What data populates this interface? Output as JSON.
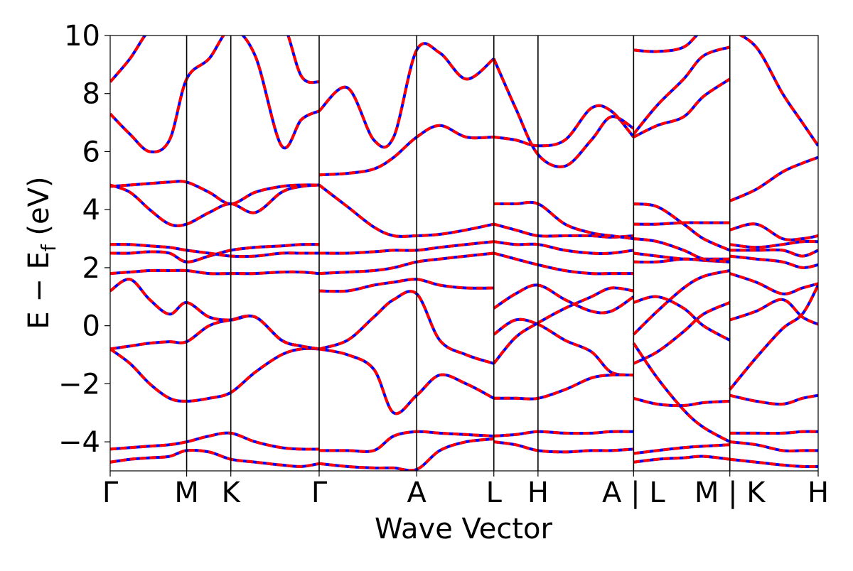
{
  "chart_data": {
    "type": "line",
    "xlabel": "Wave Vector",
    "ylabel_main": "E − E",
    "ylabel_sub": "f",
    "ylabel_unit": "(eV)",
    "ylim": [
      -5,
      10
    ],
    "yticks": [
      -4,
      -2,
      0,
      2,
      4,
      6,
      8,
      10
    ],
    "ytick_labels": [
      "−4",
      "−2",
      "0",
      "2",
      "4",
      "6",
      "8",
      "10"
    ],
    "xlim": [
      0,
      10.74
    ],
    "kpoints": [
      {
        "label": "Γ",
        "x": 0.0
      },
      {
        "label": "M",
        "x": 1.16
      },
      {
        "label": "K",
        "x": 1.83
      },
      {
        "label": "Γ",
        "x": 3.17
      },
      {
        "label": "A",
        "x": 4.65
      },
      {
        "label": "L",
        "x": 5.82
      },
      {
        "label": "H",
        "x": 6.49
      },
      {
        "label": "A | L",
        "x": 7.94
      },
      {
        "label": "M | K",
        "x": 9.4
      },
      {
        "label": "H",
        "x": 10.74
      }
    ],
    "series_colors": {
      "primary": "#ff0000",
      "secondary": "#0000ff"
    },
    "series": [
      {
        "x": [
          0,
          0.3,
          0.6,
          0.9,
          1.16,
          1.5,
          1.83,
          2.2,
          2.6,
          2.9,
          3.17
        ],
        "y": [
          -0.8,
          -0.7,
          -0.6,
          -0.55,
          -0.55,
          0.0,
          0.2,
          0.3,
          -0.5,
          -0.7,
          -0.8
        ]
      },
      {
        "x": [
          0,
          0.3,
          0.6,
          0.9,
          1.16,
          1.5,
          1.83,
          2.2,
          2.6,
          2.9,
          3.17
        ],
        "y": [
          -0.8,
          -1.3,
          -2.0,
          -2.5,
          -2.6,
          -2.5,
          -2.3,
          -1.6,
          -1.0,
          -0.8,
          -0.8
        ]
      },
      {
        "x": [
          0,
          0.3,
          0.6,
          0.9,
          1.16,
          1.5,
          1.83,
          2.2,
          2.6,
          2.9,
          3.17
        ],
        "y": [
          1.2,
          1.6,
          0.9,
          0.4,
          0.8,
          0.3,
          0.2,
          0.3,
          -0.5,
          -0.7,
          -0.8
        ]
      },
      {
        "x": [
          0,
          0.3,
          0.6,
          0.9,
          1.16,
          1.5,
          1.83,
          2.2,
          2.6,
          2.9,
          3.17
        ],
        "y": [
          1.8,
          1.85,
          1.9,
          1.9,
          1.9,
          1.8,
          1.8,
          1.8,
          1.85,
          1.85,
          1.8
        ]
      },
      {
        "x": [
          0,
          0.3,
          0.6,
          0.9,
          1.16,
          1.5,
          1.83,
          2.2,
          2.6,
          2.9,
          3.17
        ],
        "y": [
          2.5,
          2.5,
          2.55,
          2.5,
          2.2,
          2.4,
          2.6,
          2.7,
          2.75,
          2.8,
          2.8
        ]
      },
      {
        "x": [
          0,
          0.3,
          0.6,
          0.9,
          1.16,
          1.5,
          1.83,
          2.2,
          2.6,
          2.9,
          3.17
        ],
        "y": [
          2.8,
          2.8,
          2.75,
          2.7,
          2.6,
          2.5,
          2.4,
          2.4,
          2.5,
          2.5,
          2.5
        ]
      },
      {
        "x": [
          0,
          0.3,
          0.6,
          0.9,
          1.16,
          1.5,
          1.83,
          2.2,
          2.6,
          2.9,
          3.17
        ],
        "y": [
          4.8,
          4.85,
          4.9,
          4.95,
          4.95,
          4.6,
          4.2,
          4.6,
          4.8,
          4.85,
          4.85
        ]
      },
      {
        "x": [
          0,
          0.3,
          0.6,
          0.9,
          1.16,
          1.5,
          1.83,
          2.2,
          2.6,
          2.9,
          3.17
        ],
        "y": [
          4.85,
          4.6,
          4.0,
          3.5,
          3.5,
          3.9,
          4.2,
          3.9,
          4.6,
          4.8,
          4.85
        ]
      },
      {
        "x": [
          0,
          0.3,
          0.6,
          0.9,
          1.16,
          1.5,
          1.83,
          2.2,
          2.6,
          2.9,
          3.17
        ],
        "y": [
          7.3,
          6.6,
          6.0,
          6.4,
          8.5,
          9.2,
          10.2,
          9.3,
          6.2,
          7.1,
          7.4
        ]
      },
      {
        "x": [
          0,
          0.3,
          0.6,
          0.9,
          1.16,
          1.5,
          1.83,
          2.2,
          2.6,
          2.9,
          3.17
        ],
        "y": [
          8.4,
          9.2,
          10.2,
          10.5,
          10.5,
          10.5,
          10.5,
          10.5,
          10.5,
          8.6,
          8.4
        ]
      },
      {
        "x": [
          0,
          0.3,
          0.6,
          0.9,
          1.16,
          1.5,
          1.83,
          2.2,
          2.6,
          2.9,
          3.17
        ],
        "y": [
          -4.25,
          -4.2,
          -4.15,
          -4.1,
          -4.0,
          -3.8,
          -3.7,
          -4.0,
          -4.2,
          -4.25,
          -4.25
        ]
      },
      {
        "x": [
          0,
          0.3,
          0.6,
          0.9,
          1.16,
          1.5,
          1.83,
          2.2,
          2.6,
          2.9,
          3.17
        ],
        "y": [
          -4.7,
          -4.6,
          -4.55,
          -4.5,
          -4.3,
          -4.35,
          -4.6,
          -4.7,
          -4.8,
          -4.85,
          -4.75
        ]
      },
      {
        "x": [
          3.17,
          3.6,
          4.0,
          4.3,
          4.65,
          5.0,
          5.4,
          5.82
        ],
        "y": [
          -0.8,
          -0.5,
          0.3,
          0.9,
          1.1,
          -0.5,
          -1.0,
          -1.3
        ]
      },
      {
        "x": [
          3.17,
          3.6,
          4.0,
          4.3,
          4.65,
          5.0,
          5.4,
          5.82
        ],
        "y": [
          1.2,
          1.2,
          1.4,
          1.5,
          1.6,
          1.4,
          1.3,
          1.3
        ]
      },
      {
        "x": [
          3.17,
          3.6,
          4.0,
          4.3,
          4.65,
          5.0,
          5.4,
          5.82
        ],
        "y": [
          1.8,
          1.85,
          1.9,
          2.0,
          2.2,
          2.3,
          2.4,
          2.5
        ]
      },
      {
        "x": [
          3.17,
          3.6,
          4.0,
          4.3,
          4.65,
          5.0,
          5.4,
          5.82
        ],
        "y": [
          2.5,
          2.5,
          2.55,
          2.6,
          2.6,
          2.7,
          2.8,
          2.9
        ]
      },
      {
        "x": [
          3.17,
          3.6,
          4.0,
          4.3,
          4.65,
          5.0,
          5.4,
          5.82
        ],
        "y": [
          4.85,
          4.1,
          3.4,
          3.1,
          3.1,
          3.15,
          3.3,
          3.5
        ]
      },
      {
        "x": [
          3.17,
          3.6,
          4.0,
          4.3,
          4.65,
          5.0,
          5.4,
          5.82
        ],
        "y": [
          5.2,
          5.25,
          5.4,
          5.8,
          6.5,
          6.9,
          6.5,
          6.5
        ]
      },
      {
        "x": [
          3.17,
          3.6,
          4.0,
          4.3,
          4.65,
          5.0,
          5.4,
          5.82
        ],
        "y": [
          7.4,
          8.2,
          6.4,
          6.5,
          9.5,
          9.4,
          8.5,
          9.2
        ]
      },
      {
        "x": [
          3.17,
          3.6,
          4.0,
          4.3,
          4.65,
          5.0,
          5.4,
          5.82
        ],
        "y": [
          -0.8,
          -1.0,
          -1.5,
          -3.0,
          -2.4,
          -1.7,
          -2.0,
          -2.5
        ]
      },
      {
        "x": [
          3.17,
          3.6,
          4.0,
          4.3,
          4.65,
          5.0,
          5.4,
          5.82
        ],
        "y": [
          -4.3,
          -4.3,
          -4.3,
          -3.8,
          -3.65,
          -3.7,
          -3.75,
          -3.8
        ]
      },
      {
        "x": [
          3.17,
          3.6,
          4.0,
          4.3,
          4.65,
          5.0,
          5.4,
          5.82
        ],
        "y": [
          -4.75,
          -4.85,
          -4.9,
          -4.9,
          -4.95,
          -4.3,
          -4.0,
          -3.9
        ]
      },
      {
        "x": [
          5.82,
          6.15,
          6.49,
          6.9,
          7.3,
          7.6,
          7.94
        ],
        "y": [
          -0.3,
          0.2,
          0.05,
          -0.5,
          -0.9,
          -1.6,
          -1.7
        ]
      },
      {
        "x": [
          5.82,
          6.15,
          6.49,
          6.9,
          7.3,
          7.6,
          7.94
        ],
        "y": [
          -1.3,
          -0.4,
          0.1,
          0.6,
          1.0,
          1.3,
          1.2
        ]
      },
      {
        "x": [
          5.82,
          6.15,
          6.49,
          6.9,
          7.3,
          7.6,
          7.94
        ],
        "y": [
          0.6,
          1.1,
          1.4,
          0.9,
          0.5,
          0.5,
          1.0
        ]
      },
      {
        "x": [
          5.82,
          6.15,
          6.49,
          6.9,
          7.3,
          7.6,
          7.94
        ],
        "y": [
          2.5,
          2.3,
          2.1,
          1.9,
          1.8,
          1.8,
          1.8
        ]
      },
      {
        "x": [
          5.82,
          6.15,
          6.49,
          6.9,
          7.3,
          7.6,
          7.94
        ],
        "y": [
          2.9,
          2.8,
          2.8,
          2.6,
          2.5,
          2.5,
          2.6
        ]
      },
      {
        "x": [
          5.82,
          6.15,
          6.49,
          6.9,
          7.3,
          7.6,
          7.94
        ],
        "y": [
          3.5,
          3.3,
          3.1,
          3.1,
          3.1,
          3.05,
          3.1
        ]
      },
      {
        "x": [
          5.82,
          6.15,
          6.49,
          6.9,
          7.3,
          7.6,
          7.94
        ],
        "y": [
          4.2,
          4.2,
          4.2,
          3.5,
          3.2,
          3.1,
          3.0
        ]
      },
      {
        "x": [
          5.82,
          6.15,
          6.49,
          6.9,
          7.3,
          7.6,
          7.94
        ],
        "y": [
          6.5,
          6.4,
          6.2,
          6.4,
          7.5,
          7.4,
          6.5
        ]
      },
      {
        "x": [
          5.82,
          6.15,
          6.49,
          6.9,
          7.3,
          7.6,
          7.94
        ],
        "y": [
          9.2,
          7.5,
          5.9,
          5.5,
          6.4,
          7.2,
          6.8
        ]
      },
      {
        "x": [
          5.82,
          6.15,
          6.49,
          6.9,
          7.3,
          7.6,
          7.94
        ],
        "y": [
          -2.5,
          -2.5,
          -2.5,
          -2.2,
          -1.8,
          -1.7,
          -1.7
        ]
      },
      {
        "x": [
          5.82,
          6.15,
          6.49,
          6.9,
          7.3,
          7.6,
          7.94
        ],
        "y": [
          -3.8,
          -3.75,
          -3.65,
          -3.7,
          -3.7,
          -3.65,
          -3.65
        ]
      },
      {
        "x": [
          5.82,
          6.15,
          6.49,
          6.9,
          7.3,
          7.6,
          7.94
        ],
        "y": [
          -4.0,
          -4.1,
          -4.3,
          -4.35,
          -4.3,
          -4.3,
          -4.25
        ]
      },
      {
        "x": [
          7.94,
          8.3,
          8.7,
          9.0,
          9.4
        ],
        "y": [
          -0.3,
          0.5,
          1.3,
          1.7,
          1.9
        ]
      },
      {
        "x": [
          7.94,
          8.3,
          8.7,
          9.0,
          9.4
        ],
        "y": [
          -1.3,
          -0.9,
          -0.2,
          0.4,
          0.8
        ]
      },
      {
        "x": [
          7.94,
          8.3,
          8.7,
          9.0,
          9.4
        ],
        "y": [
          0.8,
          1.0,
          0.6,
          0.0,
          -0.5
        ]
      },
      {
        "x": [
          7.94,
          8.3,
          8.7,
          9.0,
          9.4
        ],
        "y": [
          -0.6,
          -1.8,
          -2.9,
          -3.5,
          -4.0
        ]
      },
      {
        "x": [
          7.94,
          8.3,
          8.7,
          9.0,
          9.4
        ],
        "y": [
          -2.5,
          -2.7,
          -2.75,
          -2.65,
          -2.6
        ]
      },
      {
        "x": [
          7.94,
          8.3,
          8.7,
          9.0,
          9.4
        ],
        "y": [
          2.2,
          2.2,
          2.3,
          2.25,
          2.2
        ]
      },
      {
        "x": [
          7.94,
          8.3,
          8.7,
          9.0,
          9.4
        ],
        "y": [
          2.5,
          2.4,
          2.3,
          2.3,
          2.3
        ]
      },
      {
        "x": [
          7.94,
          8.3,
          8.7,
          9.0,
          9.4
        ],
        "y": [
          3.0,
          2.9,
          2.6,
          2.3,
          2.2
        ]
      },
      {
        "x": [
          7.94,
          8.3,
          8.7,
          9.0,
          9.4
        ],
        "y": [
          3.5,
          3.5,
          3.55,
          3.55,
          3.55
        ]
      },
      {
        "x": [
          7.94,
          8.3,
          8.7,
          9.0,
          9.4
        ],
        "y": [
          4.2,
          4.1,
          3.5,
          3.0,
          2.6
        ]
      },
      {
        "x": [
          7.94,
          8.3,
          8.7,
          9.0,
          9.4
        ],
        "y": [
          6.5,
          6.9,
          7.2,
          7.9,
          8.5
        ]
      },
      {
        "x": [
          7.94,
          8.3,
          8.7,
          9.0,
          9.4
        ],
        "y": [
          6.6,
          7.6,
          8.5,
          9.3,
          9.6
        ]
      },
      {
        "x": [
          7.94,
          8.3,
          8.7,
          9.0,
          9.4
        ],
        "y": [
          9.5,
          9.45,
          9.6,
          10.2,
          10.5
        ]
      },
      {
        "x": [
          7.94,
          8.3,
          8.7,
          9.0,
          9.4
        ],
        "y": [
          -4.4,
          -4.3,
          -4.2,
          -4.15,
          -4.1
        ]
      },
      {
        "x": [
          7.94,
          8.3,
          8.7,
          9.0,
          9.4
        ],
        "y": [
          -4.7,
          -4.6,
          -4.55,
          -4.5,
          -4.6
        ]
      },
      {
        "x": [
          9.4,
          9.8,
          10.2,
          10.5,
          10.74
        ],
        "y": [
          -2.2,
          -1.1,
          -0.1,
          0.4,
          1.4
        ]
      },
      {
        "x": [
          9.4,
          9.8,
          10.2,
          10.5,
          10.74
        ],
        "y": [
          0.2,
          0.5,
          0.9,
          0.3,
          0.05
        ]
      },
      {
        "x": [
          9.4,
          9.8,
          10.2,
          10.5,
          10.74
        ],
        "y": [
          1.8,
          1.5,
          1.1,
          1.3,
          1.45
        ]
      },
      {
        "x": [
          9.4,
          9.8,
          10.2,
          10.5,
          10.74
        ],
        "y": [
          2.4,
          2.3,
          2.2,
          2.0,
          2.1
        ]
      },
      {
        "x": [
          9.4,
          9.8,
          10.2,
          10.5,
          10.74
        ],
        "y": [
          2.6,
          2.6,
          2.6,
          2.4,
          2.6
        ]
      },
      {
        "x": [
          9.4,
          9.8,
          10.2,
          10.5,
          10.74
        ],
        "y": [
          2.8,
          2.7,
          2.8,
          2.9,
          2.9
        ]
      },
      {
        "x": [
          9.4,
          9.8,
          10.2,
          10.5,
          10.74
        ],
        "y": [
          3.3,
          3.5,
          3.0,
          3.0,
          3.1
        ]
      },
      {
        "x": [
          9.4,
          9.8,
          10.2,
          10.5,
          10.74
        ],
        "y": [
          4.3,
          4.7,
          5.3,
          5.6,
          5.8
        ]
      },
      {
        "x": [
          9.4,
          9.8,
          10.2,
          10.5,
          10.74
        ],
        "y": [
          10.2,
          9.6,
          8.0,
          7.0,
          6.2
        ]
      },
      {
        "x": [
          9.4,
          9.8,
          10.2,
          10.5,
          10.74
        ],
        "y": [
          -2.4,
          -2.6,
          -2.7,
          -2.5,
          -2.4
        ]
      },
      {
        "x": [
          9.4,
          9.8,
          10.2,
          10.5,
          10.74
        ],
        "y": [
          -3.7,
          -3.7,
          -3.7,
          -3.65,
          -3.65
        ]
      },
      {
        "x": [
          9.4,
          9.8,
          10.2,
          10.5,
          10.74
        ],
        "y": [
          -4.0,
          -4.1,
          -4.3,
          -4.3,
          -4.3
        ]
      },
      {
        "x": [
          9.4,
          9.8,
          10.2,
          10.5,
          10.74
        ],
        "y": [
          -4.6,
          -4.7,
          -4.8,
          -4.85,
          -4.85
        ]
      }
    ]
  }
}
